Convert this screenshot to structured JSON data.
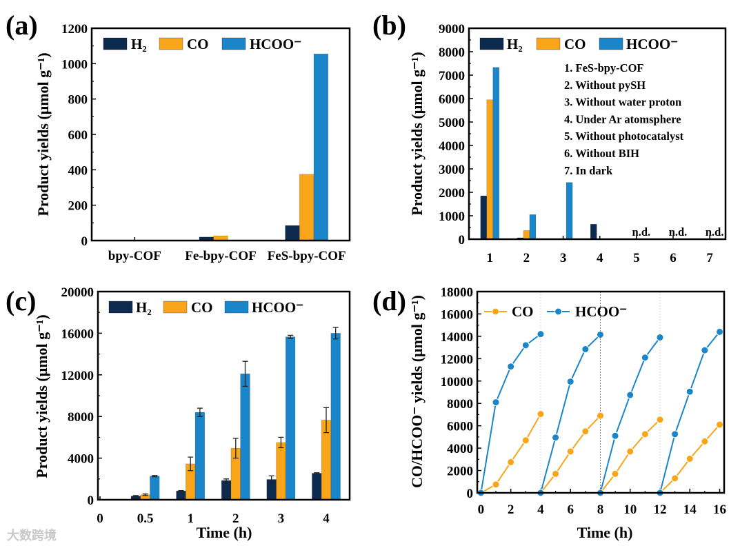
{
  "colors": {
    "H2": "#0d2b4e",
    "CO": "#f9a51a",
    "HCOO": "#1a85c8"
  },
  "watermark": "大数跨境",
  "chart_data": [
    {
      "panel": "(a)",
      "type": "bar",
      "ylabel": "Product yields (μmol g⁻¹)",
      "xlabel": "",
      "ylim": [
        0,
        1200
      ],
      "ystep": 200,
      "legend": [
        "H₂",
        "CO",
        "HCOO⁻"
      ],
      "legend_position": "top-left",
      "categories": [
        "bpy-COF",
        "Fe-bpy-COF",
        "FeS-bpy-COF"
      ],
      "series": [
        {
          "name": "H2",
          "values": [
            0,
            20,
            85
          ]
        },
        {
          "name": "CO",
          "values": [
            0,
            27,
            375
          ]
        },
        {
          "name": "HCOO",
          "values": [
            0,
            0,
            1055
          ]
        }
      ]
    },
    {
      "panel": "(b)",
      "type": "bar",
      "ylabel": "Product yields (μmol g⁻¹)",
      "xlabel": "",
      "ylim": [
        0,
        9000
      ],
      "ystep": 1000,
      "legend": [
        "H₂",
        "CO",
        "HCOO⁻"
      ],
      "legend_position": "top-left",
      "categories": [
        "1",
        "2",
        "3",
        "4",
        "5",
        "6",
        "7"
      ],
      "series": [
        {
          "name": "H2",
          "values": [
            1850,
            60,
            0,
            640,
            0,
            0,
            0
          ]
        },
        {
          "name": "CO",
          "values": [
            5950,
            370,
            0,
            0,
            0,
            0,
            0
          ]
        },
        {
          "name": "HCOO",
          "values": [
            7330,
            1050,
            2420,
            0,
            0,
            0,
            0
          ]
        }
      ],
      "bar_labels": [
        "",
        "",
        "",
        "",
        "n.d.",
        "n.d.",
        "n.d."
      ],
      "annotations": [
        "1. FeS-bpy-COF",
        "2. Without pySH",
        "3. Without water proton",
        "4. Under Ar atomsphere",
        "5. Without photocatalyst",
        "6. Without BIH",
        "7. In dark"
      ]
    },
    {
      "panel": "(c)",
      "type": "bar",
      "ylabel": "Product yields (μmol g⁻¹)",
      "xlabel": "Time (h)",
      "ylim": [
        0,
        20000
      ],
      "ystep": 4000,
      "legend": [
        "H₂",
        "CO",
        "HCOO⁻"
      ],
      "legend_position": "top-left",
      "categories": [
        "0",
        "0.5",
        "1",
        "2",
        "3",
        "4"
      ],
      "series": [
        {
          "name": "H2",
          "values": [
            0,
            350,
            850,
            1850,
            1950,
            2550
          ],
          "errors": [
            0,
            50,
            30,
            150,
            350,
            50
          ]
        },
        {
          "name": "CO",
          "values": [
            0,
            480,
            3450,
            4950,
            5500,
            7650
          ],
          "errors": [
            0,
            80,
            650,
            950,
            500,
            1200
          ]
        },
        {
          "name": "HCOO",
          "values": [
            0,
            2270,
            8400,
            12100,
            15650,
            16000
          ],
          "errors": [
            0,
            60,
            400,
            1200,
            150,
            550
          ]
        }
      ]
    },
    {
      "panel": "(d)",
      "type": "line",
      "ylabel": "CO/HCOO⁻ yields (μmol g⁻¹)",
      "xlabel": "Time (h)",
      "ylim": [
        0,
        18000
      ],
      "ystep": 2000,
      "xlim": [
        -0.25,
        16.3
      ],
      "xticks": [
        0,
        2,
        4,
        6,
        8,
        10,
        12,
        14,
        16
      ],
      "cycle_dividers": [
        4,
        8,
        12
      ],
      "legend": [
        "CO",
        "HCOO⁻"
      ],
      "legend_position": "top-left",
      "series": [
        {
          "name": "CO",
          "segments": [
            {
              "x": [
                0,
                1,
                2,
                3,
                4
              ],
              "y": [
                0,
                750,
                2750,
                4700,
                7050
              ]
            },
            {
              "x": [
                4,
                5,
                6,
                7,
                8
              ],
              "y": [
                0,
                1700,
                3700,
                5500,
                6900
              ]
            },
            {
              "x": [
                8,
                9,
                10,
                11,
                12
              ],
              "y": [
                0,
                1700,
                3700,
                5250,
                6550
              ]
            },
            {
              "x": [
                12,
                13,
                14,
                15,
                16
              ],
              "y": [
                0,
                1300,
                3050,
                4600,
                6100
              ]
            }
          ]
        },
        {
          "name": "HCOO",
          "segments": [
            {
              "x": [
                0,
                1,
                2,
                3,
                4
              ],
              "y": [
                0,
                8100,
                11300,
                13200,
                14200
              ]
            },
            {
              "x": [
                4,
                5,
                6,
                7,
                8
              ],
              "y": [
                0,
                4950,
                9950,
                12850,
                14150
              ]
            },
            {
              "x": [
                8,
                9,
                10,
                11,
                12
              ],
              "y": [
                0,
                5100,
                8750,
                12100,
                13900
              ]
            },
            {
              "x": [
                12,
                13,
                14,
                15,
                16
              ],
              "y": [
                0,
                5250,
                9050,
                12750,
                14400
              ]
            }
          ]
        }
      ]
    }
  ]
}
